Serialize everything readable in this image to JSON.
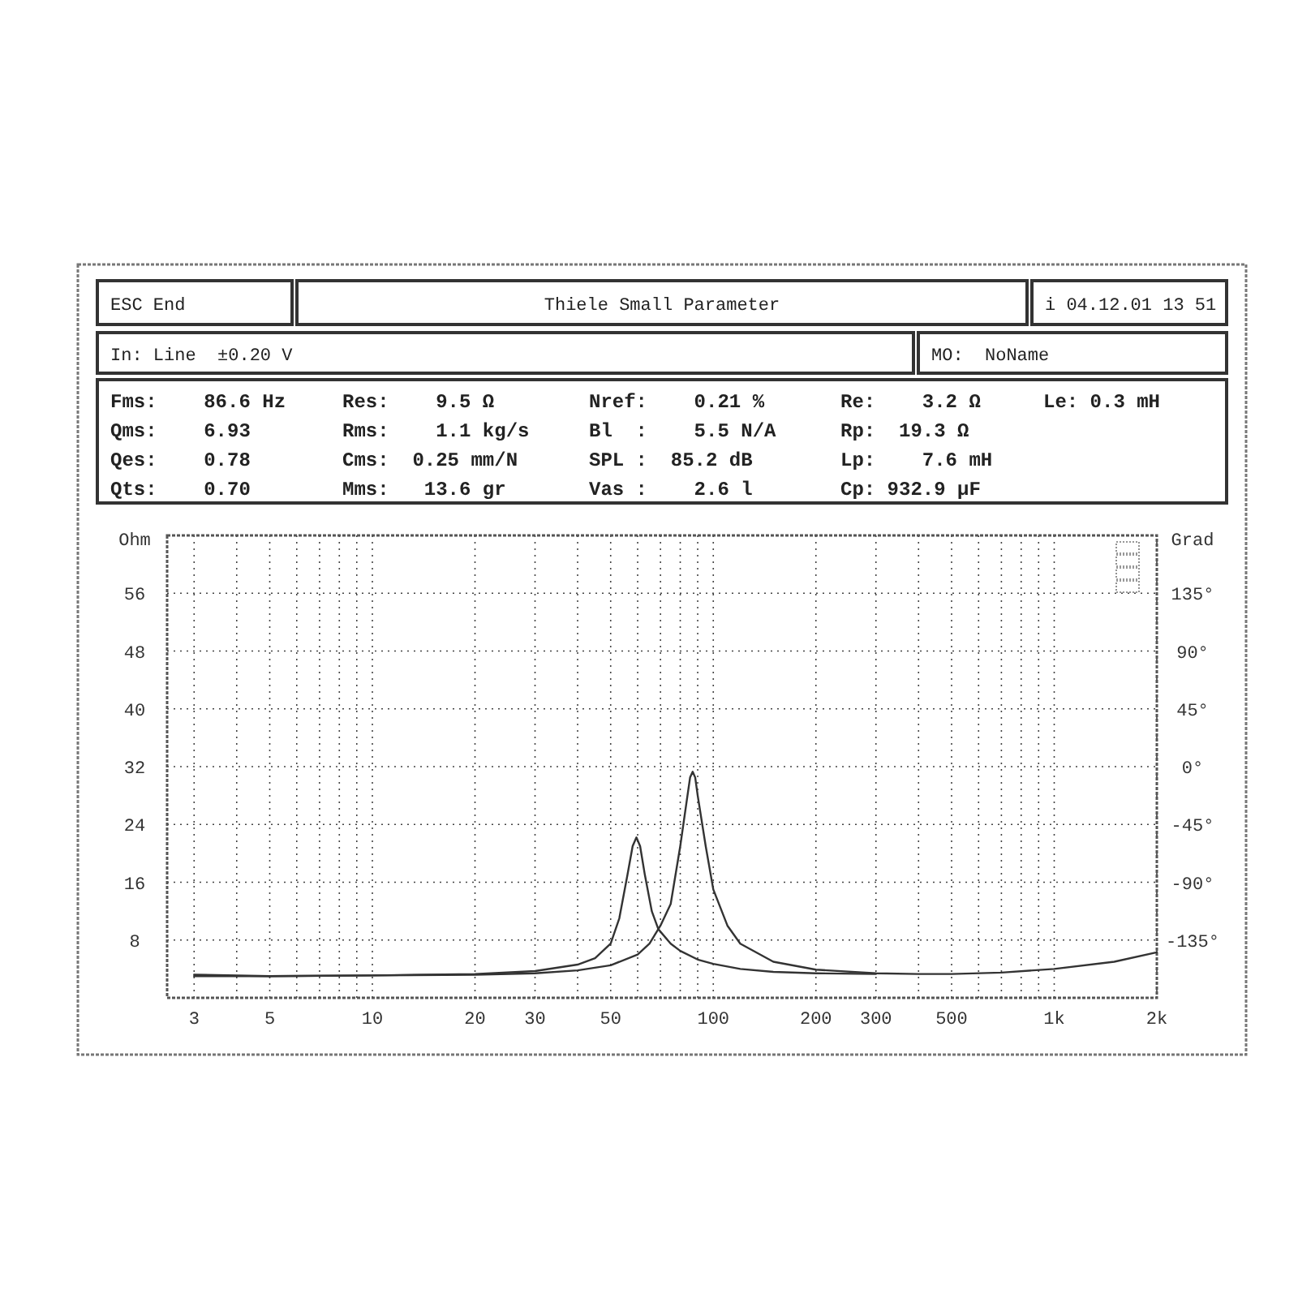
{
  "chart_data": {
    "type": "line",
    "xlabel": null,
    "ylabel": "Ohm",
    "y2label": "Grad",
    "annotations": [
      "ESC End",
      "Thiele Small Parameter",
      "i 04.12.01 13 51",
      "In: Line  ±0.20 V",
      "MO:  NoName",
      "Fms:    86.6 Hz",
      "Res:    9.5 Ω",
      "Nref:    0.21 %",
      "Re:    3.2 Ω",
      "Le: 0.3 mH",
      "Qms:    6.93",
      "Rms:    1.1 kg/s",
      "Bl  :    5.5 N/A",
      "Rp:  19.3 Ω",
      "Qes:    0.78",
      "Cms:  0.25 mm/N",
      "SPL :  85.2 dB",
      "Lp:    7.6 mH",
      "Qts:    0.70",
      "Mms:   13.6 gr",
      "Vas :    2.6 l",
      "Cp: 932.9 µF"
    ],
    "log": "x",
    "grid": true,
    "marker": "none",
    "line_style": "solid",
    "xlim": [
      2.5,
      2000
    ],
    "xticks": [
      3,
      {
        "value": 4,
        "label": null
      },
      5,
      {
        "value": 6,
        "label": null
      },
      {
        "value": 7,
        "label": null
      },
      {
        "value": 8,
        "label": null
      },
      {
        "value": 9,
        "label": null
      },
      10,
      20,
      30,
      {
        "value": 40,
        "label": null
      },
      50,
      {
        "value": 60,
        "label": null
      },
      {
        "value": 70,
        "label": null
      },
      {
        "value": 80,
        "label": null
      },
      {
        "value": 90,
        "label": null
      },
      100,
      200,
      300,
      {
        "value": 400,
        "label": null
      },
      500,
      {
        "value": 600,
        "label": null
      },
      {
        "value": 700,
        "label": null
      },
      {
        "value": 800,
        "label": null
      },
      {
        "value": 900,
        "label": null
      },
      {
        "value": 1000,
        "label": "1k"
      },
      {
        "value": 2000,
        "label": "2k"
      }
    ],
    "ylim": [
      0,
      64
    ],
    "yticks": [
      8,
      16,
      24,
      32,
      40,
      48,
      56
    ],
    "y2lim": [
      -180,
      180
    ],
    "y2ticks": [
      {
        "value": -135,
        "label": "-135°"
      },
      {
        "value": -90,
        "label": "-90°"
      },
      {
        "value": -45,
        "label": "-45°"
      },
      {
        "value": 0,
        "label": "0°"
      },
      {
        "value": 45,
        "label": "45°"
      },
      {
        "value": 90,
        "label": "90°"
      },
      {
        "value": 135,
        "label": "135°"
      }
    ],
    "series": [
      {
        "color": "#333333",
        "x": [
          3,
          5,
          10,
          20,
          30,
          40,
          50,
          60,
          65,
          70,
          75,
          80,
          84,
          85.5,
          87,
          88.5,
          90,
          95,
          100,
          110,
          120,
          150,
          200,
          300,
          400,
          500,
          700,
          1000,
          1500,
          2000
        ],
        "values": [
          3.0,
          3.0,
          3.1,
          3.2,
          3.4,
          3.8,
          4.5,
          6,
          7.5,
          10,
          13,
          21,
          28,
          30.5,
          31.3,
          30.5,
          28,
          21,
          15,
          10,
          7.5,
          5,
          3.9,
          3.4,
          3.3,
          3.3,
          3.5,
          4,
          5,
          6.3
        ]
      },
      {
        "color": "#333333",
        "x": [
          3,
          5,
          10,
          20,
          30,
          40,
          45,
          50,
          53,
          56,
          58,
          59.5,
          61,
          63,
          66,
          69,
          75,
          80,
          90,
          100,
          120,
          150,
          200,
          300
        ],
        "values": [
          3.2,
          3.0,
          3.1,
          3.3,
          3.7,
          4.6,
          5.5,
          7.5,
          11,
          17,
          21,
          22.2,
          21,
          17,
          12,
          9.5,
          7.5,
          6.5,
          5.3,
          4.7,
          4,
          3.6,
          3.4,
          3.3
        ]
      }
    ]
  }
}
